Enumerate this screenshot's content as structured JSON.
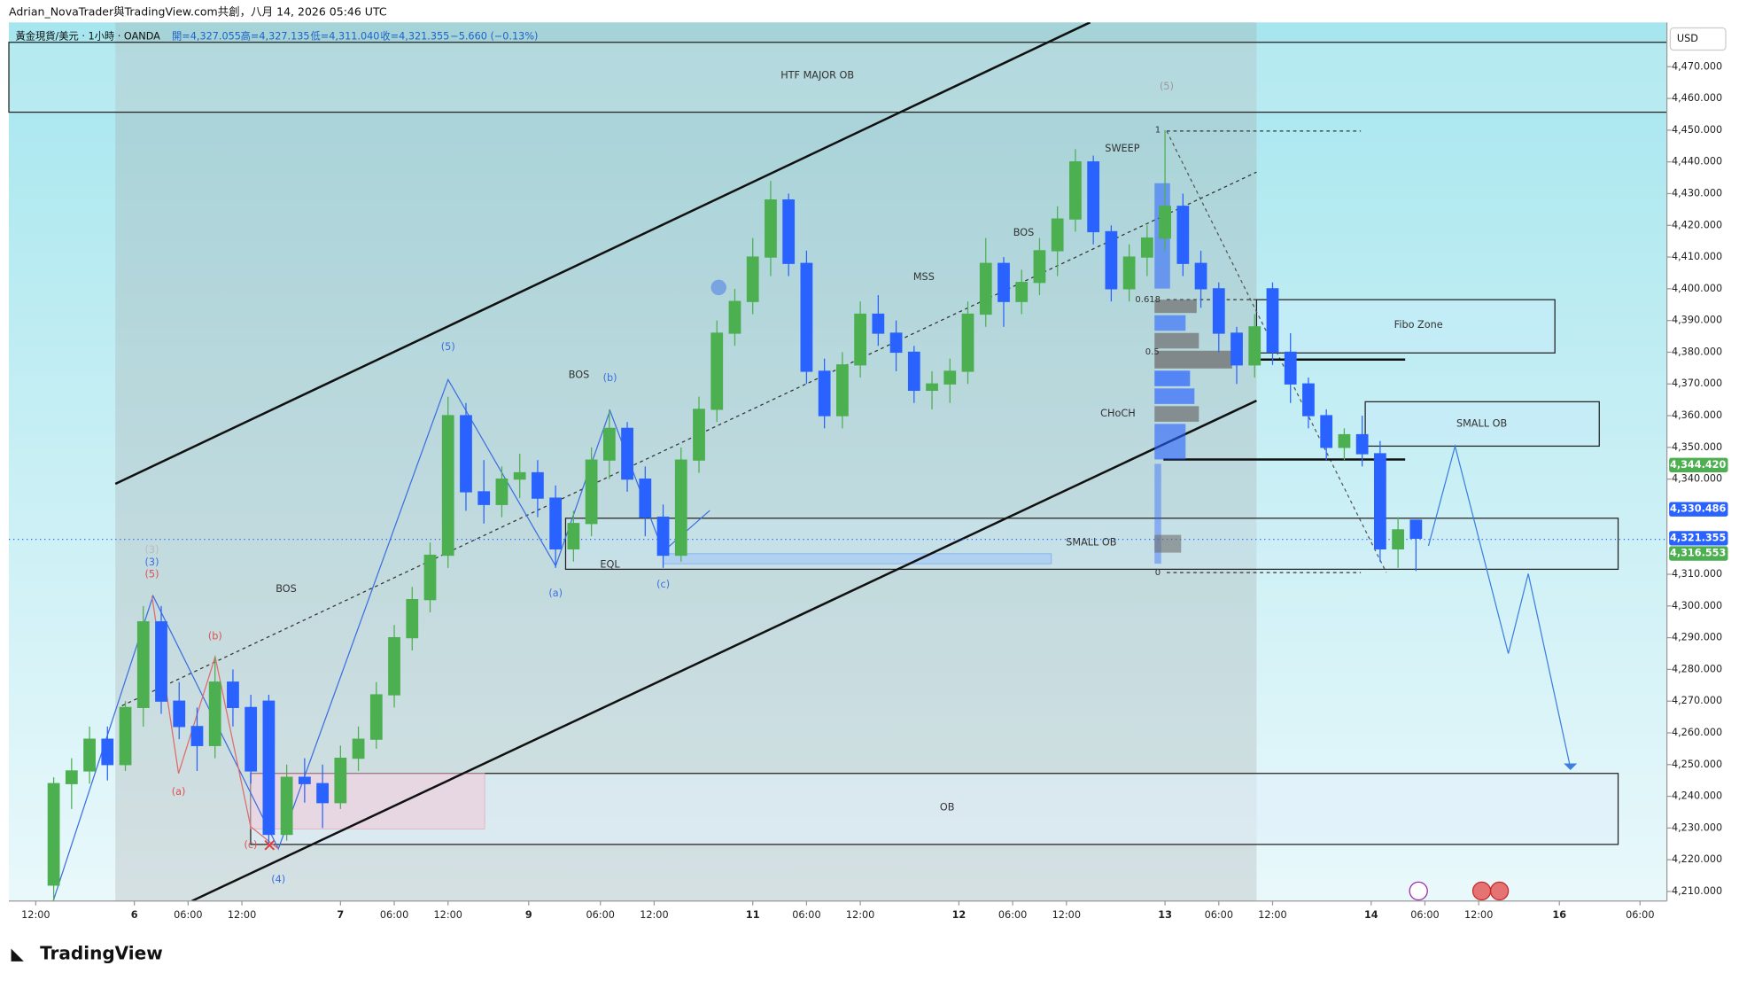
{
  "chart_data": {
    "type": "candlestick",
    "watermark": "Adrian_NovaTrader與TradingView.com共創，八月 14, 2026 05:46 UTC",
    "symbol": "黃金現貨/美元 · 1小時 · OANDA",
    "ohlc_labels": [
      "開=4,327.055",
      "高=4,327.135",
      "低=4,311.040",
      "收=4,321.355",
      "−5.660 (−0.13%)"
    ],
    "currency": "USD",
    "brand": "TradingView",
    "up_color": "#4caf50",
    "down_color": "#2962ff",
    "x": [
      2,
      4,
      6,
      8,
      10,
      12,
      14,
      16,
      18,
      20,
      22,
      24,
      26,
      28,
      30,
      32,
      34,
      36,
      38,
      40,
      42,
      44,
      46,
      48,
      50,
      52,
      54,
      56,
      58,
      60,
      62,
      64,
      66,
      68,
      70,
      72,
      74,
      76,
      78,
      80,
      82,
      84,
      86,
      88,
      90,
      92,
      94,
      96,
      98,
      100,
      102,
      104,
      106,
      108,
      110,
      112,
      114,
      116,
      118,
      120,
      122,
      124,
      126,
      128,
      130,
      132,
      134,
      136,
      138,
      140,
      142,
      144,
      146,
      148,
      150,
      152,
      154
    ],
    "open": [
      4212,
      4244,
      4248,
      4258,
      4250,
      4268,
      4295,
      4270,
      4262,
      4256,
      4276,
      4268,
      4270,
      4228,
      4246,
      4244,
      4238,
      4252,
      4258,
      4272,
      4290,
      4302,
      4316,
      4360,
      4336,
      4332,
      4340,
      4342,
      4334,
      4318,
      4326,
      4346,
      4356,
      4340,
      4328,
      4316,
      4346,
      4362,
      4386,
      4396,
      4410,
      4428,
      4408,
      4374,
      4360,
      4376,
      4392,
      4386,
      4380,
      4368,
      4370,
      4374,
      4392,
      4408,
      4396,
      4402,
      4412,
      4422,
      4440,
      4418,
      4400,
      4410,
      4416,
      4426,
      4408,
      4400,
      4386,
      4376,
      4400,
      4380,
      4370,
      4360,
      4350,
      4354,
      4348,
      4318,
      4327.055
    ],
    "high": [
      4246,
      4252,
      4262,
      4262,
      4270,
      4300,
      4300,
      4276,
      4268,
      4284,
      4280,
      4272,
      4272,
      4250,
      4252,
      4250,
      4256,
      4262,
      4276,
      4294,
      4306,
      4320,
      4366,
      4364,
      4346,
      4344,
      4348,
      4346,
      4338,
      4330,
      4350,
      4362,
      4358,
      4344,
      4332,
      4350,
      4366,
      4390,
      4400,
      4416,
      4434,
      4430,
      4412,
      4378,
      4380,
      4396,
      4398,
      4390,
      4382,
      4374,
      4378,
      4396,
      4416,
      4410,
      4406,
      4416,
      4426,
      4444,
      4442,
      4420,
      4414,
      4420,
      4450,
      4430,
      4412,
      4402,
      4388,
      4392,
      4402,
      4386,
      4372,
      4362,
      4356,
      4360,
      4352,
      4328,
      4327.135
    ],
    "low": [
      4205,
      4236,
      4244,
      4245,
      4248,
      4262,
      4266,
      4258,
      4248,
      4252,
      4262,
      4244,
      4224,
      4226,
      4238,
      4230,
      4236,
      4248,
      4255,
      4268,
      4286,
      4298,
      4312,
      4330,
      4326,
      4328,
      4334,
      4328,
      4312,
      4314,
      4322,
      4340,
      4336,
      4322,
      4312,
      4314,
      4342,
      4358,
      4382,
      4392,
      4404,
      4404,
      4370,
      4356,
      4356,
      4372,
      4382,
      4374,
      4364,
      4362,
      4364,
      4370,
      4388,
      4388,
      4392,
      4398,
      4404,
      4418,
      4414,
      4396,
      4396,
      4404,
      4412,
      4404,
      4394,
      4380,
      4370,
      4372,
      4376,
      4364,
      4356,
      4346,
      4346,
      4344,
      4314,
      4312,
      4311.04
    ],
    "close": [
      4244,
      4248,
      4258,
      4250,
      4268,
      4295,
      4270,
      4262,
      4256,
      4276,
      4268,
      4248,
      4228,
      4246,
      4244,
      4238,
      4252,
      4258,
      4272,
      4290,
      4302,
      4316,
      4360,
      4336,
      4332,
      4340,
      4342,
      4334,
      4318,
      4326,
      4346,
      4356,
      4340,
      4328,
      4316,
      4346,
      4362,
      4386,
      4396,
      4410,
      4428,
      4408,
      4374,
      4360,
      4376,
      4392,
      4386,
      4380,
      4368,
      4370,
      4374,
      4392,
      4408,
      4396,
      4402,
      4412,
      4422,
      4440,
      4418,
      4400,
      4410,
      4416,
      4426,
      4408,
      4400,
      4386,
      4376,
      4388,
      4380,
      4370,
      4360,
      4350,
      4354,
      4348,
      4318,
      4324,
      4321.355
    ],
    "xlim": [
      -3,
      182
    ],
    "xticks": [
      {
        "value": 0,
        "label": "12:00"
      },
      {
        "value": 11,
        "label": "6"
      },
      {
        "value": 17,
        "label": "06:00"
      },
      {
        "value": 23,
        "label": "12:00"
      },
      {
        "value": 34,
        "label": "7"
      },
      {
        "value": 40,
        "label": "06:00"
      },
      {
        "value": 46,
        "label": "12:00"
      },
      {
        "value": 55,
        "label": "9"
      },
      {
        "value": 63,
        "label": "06:00"
      },
      {
        "value": 69,
        "label": "12:00"
      },
      {
        "value": 80,
        "label": "11"
      },
      {
        "value": 86,
        "label": "06:00"
      },
      {
        "value": 92,
        "label": "12:00"
      },
      {
        "value": 103,
        "label": "12"
      },
      {
        "value": 109,
        "label": "06:00"
      },
      {
        "value": 115,
        "label": "12:00"
      },
      {
        "value": 126,
        "label": "13"
      },
      {
        "value": 132,
        "label": "06:00"
      },
      {
        "value": 138,
        "label": "12:00"
      },
      {
        "value": 149,
        "label": "14"
      },
      {
        "value": 155,
        "label": "06:00"
      },
      {
        "value": 161,
        "label": "12:00"
      },
      {
        "value": 170,
        "label": "16"
      },
      {
        "value": 179,
        "label": "06:00"
      }
    ],
    "ylim": [
      4207,
      4484
    ],
    "yticks": [
      {
        "value": 4210,
        "label": "4,210.000"
      },
      {
        "value": 4220,
        "label": "4,220.000"
      },
      {
        "value": 4230,
        "label": "4,230.000"
      },
      {
        "value": 4240,
        "label": "4,240.000"
      },
      {
        "value": 4250,
        "label": "4,250.000"
      },
      {
        "value": 4260,
        "label": "4,260.000"
      },
      {
        "value": 4270,
        "label": "4,270.000"
      },
      {
        "value": 4280,
        "label": "4,280.000"
      },
      {
        "value": 4290,
        "label": "4,290.000"
      },
      {
        "value": 4300,
        "label": "4,300.000"
      },
      {
        "value": 4310,
        "label": "4,310.000"
      },
      {
        "value": 4340,
        "label": "4,340.000"
      },
      {
        "value": 4350,
        "label": "4,350.000"
      },
      {
        "value": 4360,
        "label": "4,360.000"
      },
      {
        "value": 4370,
        "label": "4,370.000"
      },
      {
        "value": 4380,
        "label": "4,380.000"
      },
      {
        "value": 4390,
        "label": "4,390.000"
      },
      {
        "value": 4400,
        "label": "4,400.000"
      },
      {
        "value": 4410,
        "label": "4,410.000"
      },
      {
        "value": 4420,
        "label": "4,420.000"
      },
      {
        "value": 4430,
        "label": "4,430.000"
      },
      {
        "value": 4440,
        "label": "4,440.000"
      },
      {
        "value": 4450,
        "label": "4,450.000"
      },
      {
        "value": 4460,
        "label": "4,460.000"
      },
      {
        "value": 4470,
        "label": "4,470.000"
      }
    ],
    "price_tags": [
      {
        "value": 4344.42,
        "label": "4,344.420",
        "color": "#4caf50"
      },
      {
        "value": 4330.486,
        "label": "4,330.486",
        "color": "#2962ff"
      },
      {
        "value": 4321.355,
        "label": "4,321.355",
        "color": "#2962ff"
      },
      {
        "value": 4316.553,
        "label": "4,316.553",
        "color": "#4caf50"
      }
    ],
    "annotations": [
      "HTF MAJOR OB",
      "SWEEP",
      "BOS",
      "MSS",
      "BOS",
      "BOS",
      "CHoCH",
      "SMALL OB",
      "EQL",
      "OB",
      "Fibo Zone",
      "SMALL OB",
      "0.618",
      "0.5",
      "1",
      "0",
      "(5)",
      "(b)",
      "(a)",
      "(c)",
      "(3)",
      "(5)",
      "(b)",
      "(a)",
      "(c)",
      "(4)",
      "(5)",
      "(3)"
    ]
  }
}
